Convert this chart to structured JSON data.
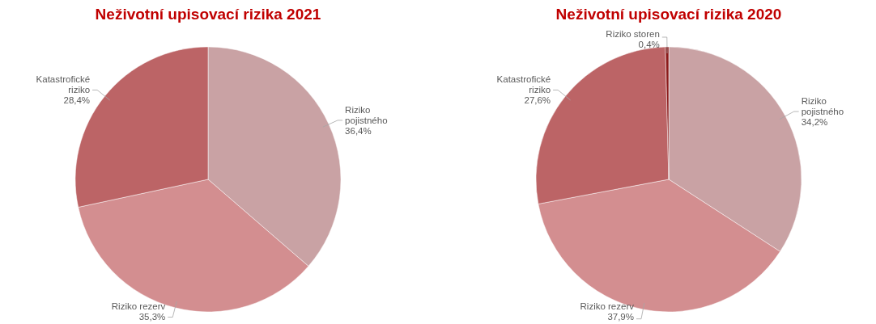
{
  "chart_data": [
    {
      "type": "pie",
      "title": "Neživotní upisovací rizika 2021",
      "categories": [
        "Riziko pojistného",
        "Riziko rezerv",
        "Katastrofické riziko"
      ],
      "values": [
        36.4,
        35.3,
        28.4
      ],
      "value_labels": [
        "36,4%",
        "35,3%",
        "28,4%"
      ],
      "colors": [
        "#c9a2a4",
        "#d38e90",
        "#bc6466"
      ]
    },
    {
      "type": "pie",
      "title": "Neživotní upisovací rizika 2020",
      "categories": [
        "Riziko pojistného",
        "Riziko rezerv",
        "Katastrofické riziko",
        "Riziko storen"
      ],
      "values": [
        34.2,
        37.9,
        27.6,
        0.4
      ],
      "value_labels": [
        "34,2%",
        "37,9%",
        "27,6%",
        "0,4%"
      ],
      "colors": [
        "#c9a2a4",
        "#d38e90",
        "#bc6466",
        "#8b1a1a"
      ]
    }
  ]
}
